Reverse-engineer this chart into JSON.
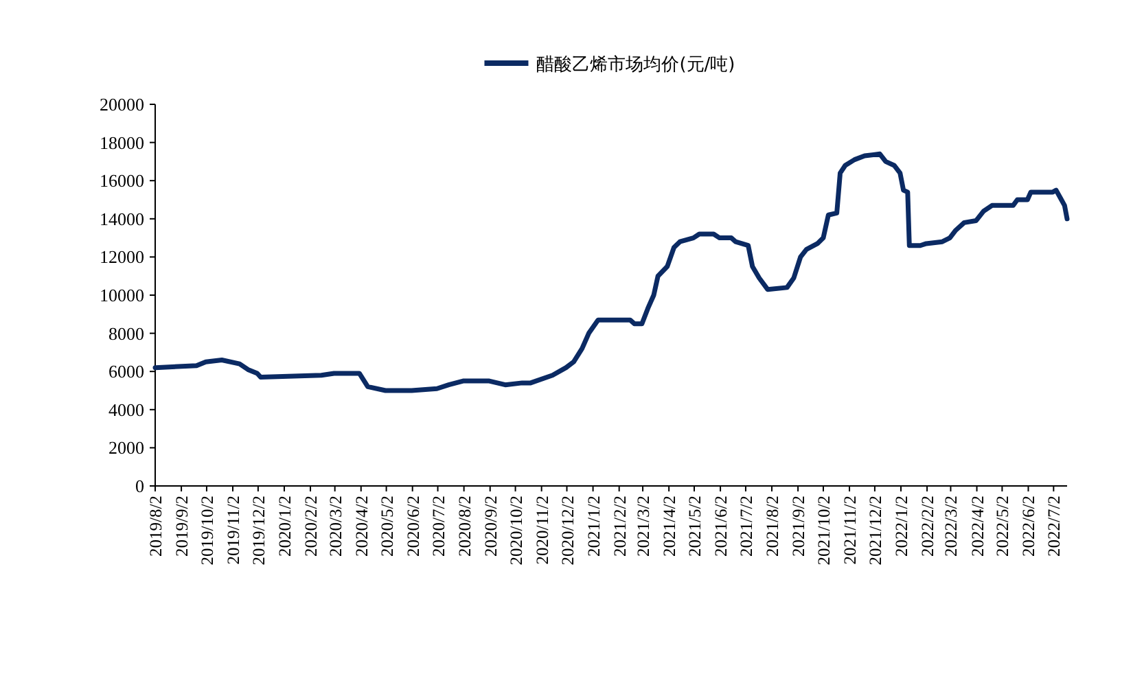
{
  "chart_data": {
    "type": "line",
    "legend": "top",
    "marker": "none",
    "line_style": "solid",
    "x": [
      "2019-08-02",
      "2019-09-20",
      "2019-10-01",
      "2019-10-20",
      "2019-11-10",
      "2019-11-20",
      "2019-12-01",
      "2019-12-05",
      "2020-02-15",
      "2020-03-01",
      "2020-03-31",
      "2020-04-10",
      "2020-05-01",
      "2020-06-01",
      "2020-07-01",
      "2020-07-15",
      "2020-08-01",
      "2020-09-01",
      "2020-09-20",
      "2020-10-10",
      "2020-10-20",
      "2020-11-15",
      "2020-12-01",
      "2020-12-10",
      "2020-12-20",
      "2020-12-28",
      "2021-01-08",
      "2021-02-15",
      "2021-02-20",
      "2021-03-01",
      "2021-03-08",
      "2021-03-15",
      "2021-03-20",
      "2021-03-31",
      "2021-04-08",
      "2021-04-15",
      "2021-05-01",
      "2021-05-08",
      "2021-05-25",
      "2021-06-01",
      "2021-06-15",
      "2021-06-20",
      "2021-07-05",
      "2021-07-10",
      "2021-07-18",
      "2021-07-28",
      "2021-08-20",
      "2021-08-28",
      "2021-09-05",
      "2021-09-12",
      "2021-09-25",
      "2021-10-02",
      "2021-10-08",
      "2021-10-18",
      "2021-10-22",
      "2021-10-28",
      "2021-11-08",
      "2021-11-20",
      "2021-12-08",
      "2021-12-15",
      "2021-12-25",
      "2022-01-01",
      "2022-01-05",
      "2022-01-10",
      "2022-01-12",
      "2022-01-25",
      "2022-02-01",
      "2022-02-20",
      "2022-03-01",
      "2022-03-08",
      "2022-03-18",
      "2022-04-01",
      "2022-04-10",
      "2022-04-20",
      "2022-05-15",
      "2022-05-20",
      "2022-06-01",
      "2022-06-05",
      "2022-07-01",
      "2022-07-05",
      "2022-07-10",
      "2022-07-15",
      "2022-07-18"
    ],
    "series": [
      {
        "name": "醋酸乙烯市场均价(元/吨)",
        "color": "#0b2a63",
        "values": [
          6200,
          6300,
          6500,
          6600,
          6400,
          6100,
          5900,
          5700,
          5800,
          5900,
          5900,
          5200,
          5000,
          5000,
          5100,
          5300,
          5500,
          5500,
          5300,
          5400,
          5400,
          5800,
          6200,
          6500,
          7200,
          8000,
          8700,
          8700,
          8500,
          8500,
          9300,
          10000,
          11000,
          11500,
          12500,
          12800,
          13000,
          13200,
          13200,
          13000,
          13000,
          12800,
          12600,
          11500,
          10900,
          10300,
          10400,
          10900,
          12000,
          12400,
          12700,
          13000,
          14200,
          14300,
          16400,
          16800,
          17100,
          17300,
          17400,
          17000,
          16800,
          16400,
          15500,
          15400,
          12600,
          12600,
          12700,
          12800,
          13000,
          13400,
          13800,
          13900,
          14400,
          14700,
          14700,
          15000,
          15000,
          15400,
          15400,
          15500,
          15100,
          14700,
          14000
        ]
      }
    ],
    "xlim": [
      "2019-08-02",
      "2022-07-18"
    ],
    "ylim": [
      0,
      20000
    ],
    "yticks": [
      0,
      2000,
      4000,
      6000,
      8000,
      10000,
      12000,
      14000,
      16000,
      18000,
      20000
    ],
    "xticks": [
      {
        "value": "2019-08-02",
        "label": "2019/8/2"
      },
      {
        "value": "2019-09-02",
        "label": "2019/9/2"
      },
      {
        "value": "2019-10-02",
        "label": "2019/10/2"
      },
      {
        "value": "2019-11-02",
        "label": "2019/11/2"
      },
      {
        "value": "2019-12-02",
        "label": "2019/12/2"
      },
      {
        "value": "2020-01-02",
        "label": "2020/1/2"
      },
      {
        "value": "2020-02-02",
        "label": "2020/2/2"
      },
      {
        "value": "2020-03-02",
        "label": "2020/3/2"
      },
      {
        "value": "2020-04-02",
        "label": "2020/4/2"
      },
      {
        "value": "2020-05-02",
        "label": "2020/5/2"
      },
      {
        "value": "2020-06-02",
        "label": "2020/6/2"
      },
      {
        "value": "2020-07-02",
        "label": "2020/7/2"
      },
      {
        "value": "2020-08-02",
        "label": "2020/8/2"
      },
      {
        "value": "2020-09-02",
        "label": "2020/9/2"
      },
      {
        "value": "2020-10-02",
        "label": "2020/10/2"
      },
      {
        "value": "2020-11-02",
        "label": "2020/11/2"
      },
      {
        "value": "2020-12-02",
        "label": "2020/12/2"
      },
      {
        "value": "2021-01-02",
        "label": "2021/1/2"
      },
      {
        "value": "2021-02-02",
        "label": "2021/2/2"
      },
      {
        "value": "2021-03-02",
        "label": "2021/3/2"
      },
      {
        "value": "2021-04-02",
        "label": "2021/4/2"
      },
      {
        "value": "2021-05-02",
        "label": "2021/5/2"
      },
      {
        "value": "2021-06-02",
        "label": "2021/6/2"
      },
      {
        "value": "2021-07-02",
        "label": "2021/7/2"
      },
      {
        "value": "2021-08-02",
        "label": "2021/8/2"
      },
      {
        "value": "2021-09-02",
        "label": "2021/9/2"
      },
      {
        "value": "2021-10-02",
        "label": "2021/10/2"
      },
      {
        "value": "2021-11-02",
        "label": "2021/11/2"
      },
      {
        "value": "2021-12-02",
        "label": "2021/12/2"
      },
      {
        "value": "2022-01-02",
        "label": "2022/1/2"
      },
      {
        "value": "2022-02-02",
        "label": "2022/2/2"
      },
      {
        "value": "2022-03-02",
        "label": "2022/3/2"
      },
      {
        "value": "2022-04-02",
        "label": "2022/4/2"
      },
      {
        "value": "2022-05-02",
        "label": "2022/5/2"
      },
      {
        "value": "2022-06-02",
        "label": "2022/6/2"
      },
      {
        "value": "2022-07-02",
        "label": "2022/7/2"
      }
    ]
  }
}
